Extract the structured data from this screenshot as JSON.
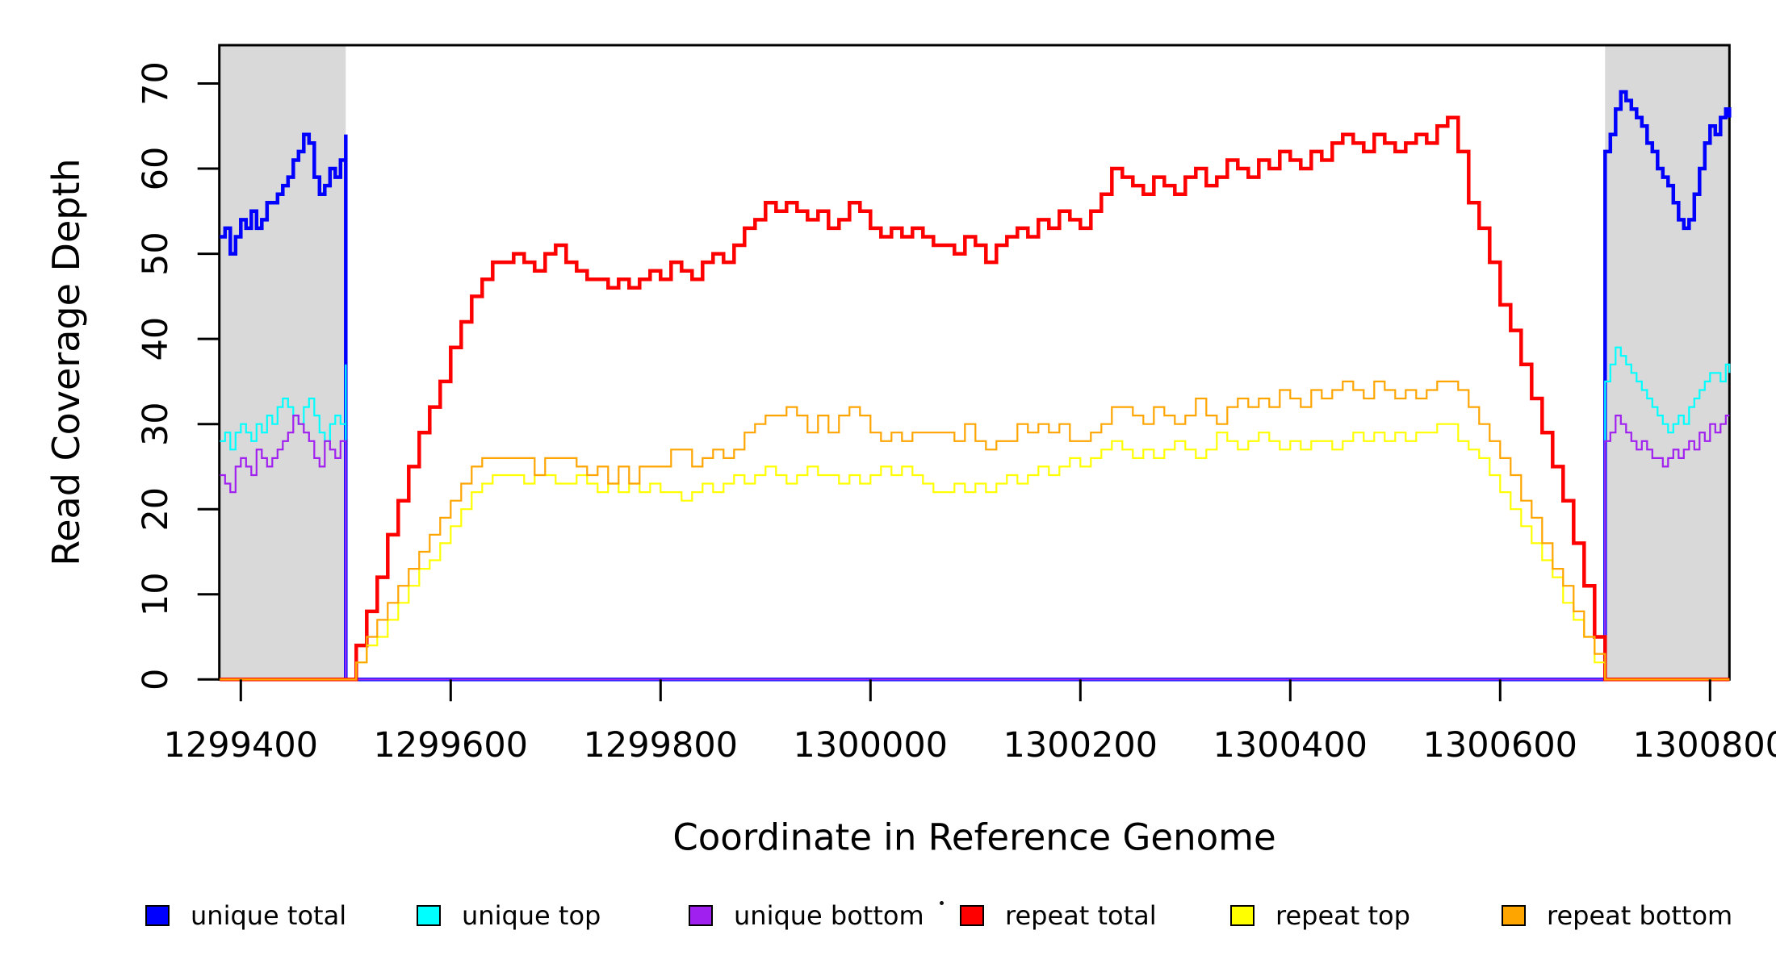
{
  "chart_data": {
    "type": "line",
    "title": "",
    "xlabel": "Coordinate in Reference Genome",
    "ylabel": "Read Coverage Depth",
    "x_domain": [
      1299379.5,
      1300818.5
    ],
    "y_domain": [
      0,
      74.5
    ],
    "grid": false,
    "legend_position": "bottom",
    "axis_color": "#000000",
    "shade_color": "#D9D9D9",
    "x_ticks": [
      {
        "v": 1299400,
        "label": "1299400"
      },
      {
        "v": 1299600,
        "label": "1299600"
      },
      {
        "v": 1299800,
        "label": "1299800"
      },
      {
        "v": 1300000,
        "label": "1300000"
      },
      {
        "v": 1300200,
        "label": "1300200"
      },
      {
        "v": 1300400,
        "label": "1300400"
      },
      {
        "v": 1300600,
        "label": "1300600"
      },
      {
        "v": 1300800,
        "label": "1300800"
      }
    ],
    "y_ticks": [
      {
        "v": 0,
        "label": "0"
      },
      {
        "v": 10,
        "label": "10"
      },
      {
        "v": 20,
        "label": "20"
      },
      {
        "v": 30,
        "label": "30"
      },
      {
        "v": 40,
        "label": "40"
      },
      {
        "v": 50,
        "label": "50"
      },
      {
        "v": 60,
        "label": "60"
      },
      {
        "v": 70,
        "label": "70"
      }
    ],
    "shaded_regions": [
      {
        "from": 1299379.5,
        "to": 1299500
      },
      {
        "from": 1300700,
        "to": 1300818.5
      }
    ],
    "series": [
      {
        "name": "unique total",
        "color": "#0000FF",
        "width": 4.5,
        "segments": [
          {
            "x0": 1299380,
            "dx": 5,
            "v": [
              52,
              53,
              50,
              52,
              54,
              53,
              55,
              53,
              54,
              56,
              56,
              57,
              58,
              59,
              61,
              62,
              64,
              63,
              59,
              57,
              58,
              60,
              59,
              61,
              64
            ]
          },
          {
            "x0": 1299500,
            "dx": 1200,
            "v": [
              0
            ]
          },
          {
            "x0": 1300700,
            "dx": 5,
            "v": [
              62,
              64,
              67,
              69,
              68,
              67,
              66,
              65,
              63,
              62,
              60,
              59,
              58,
              56,
              54,
              53,
              54,
              57,
              60,
              63,
              65,
              64,
              66,
              67,
              66
            ]
          }
        ]
      },
      {
        "name": "unique top",
        "color": "#00FFFF",
        "width": 2.2,
        "segments": [
          {
            "x0": 1299380,
            "dx": 5,
            "v": [
              28,
              29,
              27,
              29,
              30,
              29,
              28,
              30,
              29,
              31,
              30,
              32,
              33,
              32,
              31,
              30,
              32,
              33,
              31,
              29,
              28,
              30,
              31,
              30,
              37
            ]
          },
          {
            "x0": 1299500,
            "dx": 1200,
            "v": [
              0
            ]
          },
          {
            "x0": 1300700,
            "dx": 5,
            "v": [
              35,
              37,
              39,
              38,
              37,
              36,
              35,
              34,
              33,
              32,
              31,
              30,
              29,
              30,
              31,
              30,
              32,
              33,
              34,
              35,
              36,
              36,
              35,
              37,
              36
            ]
          }
        ]
      },
      {
        "name": "unique bottom",
        "color": "#A020F0",
        "width": 2.2,
        "segments": [
          {
            "x0": 1299380,
            "dx": 5,
            "v": [
              24,
              23,
              22,
              25,
              26,
              25,
              24,
              27,
              26,
              25,
              26,
              27,
              28,
              29,
              31,
              30,
              29,
              28,
              26,
              25,
              28,
              27,
              26,
              28,
              27
            ]
          },
          {
            "x0": 1299500,
            "dx": 1200,
            "v": [
              0
            ]
          },
          {
            "x0": 1300700,
            "dx": 5,
            "v": [
              28,
              29,
              31,
              30,
              29,
              28,
              27,
              28,
              27,
              26,
              26,
              25,
              26,
              27,
              26,
              27,
              28,
              27,
              29,
              28,
              30,
              29,
              30,
              31,
              31
            ]
          }
        ]
      },
      {
        "name": "repeat total",
        "color": "#FF0000",
        "width": 4.5,
        "segments": [
          {
            "x0": 1299380,
            "dx": 120,
            "v": [
              0
            ]
          },
          {
            "x0": 1299500,
            "dx": 10,
            "v": [
              0,
              4,
              8,
              12,
              17,
              21,
              25,
              29,
              32,
              35,
              39,
              42,
              45,
              47,
              49,
              49,
              50,
              49,
              48,
              50,
              51,
              49,
              48,
              47,
              47,
              46,
              47,
              46,
              47,
              48,
              47,
              49,
              48,
              47,
              49,
              50,
              49,
              51,
              53,
              54,
              56,
              55,
              56,
              55,
              54,
              55,
              53,
              54,
              56,
              55,
              53,
              52,
              53,
              52,
              53,
              52,
              51,
              51,
              50,
              52,
              51,
              49,
              51,
              52,
              53,
              52,
              54,
              53,
              55,
              54,
              53,
              55,
              57,
              60,
              59,
              58,
              57,
              59,
              58,
              57,
              59,
              60,
              58,
              59,
              61,
              60,
              59,
              61,
              60,
              62,
              61,
              60,
              62,
              61,
              63,
              64,
              63,
              62,
              64,
              63,
              62,
              63,
              64,
              63,
              65,
              66,
              62,
              56,
              53,
              49,
              44,
              41,
              37,
              33,
              29,
              25,
              21,
              16,
              11,
              5,
              0
            ]
          }
        ]
      },
      {
        "name": "repeat top",
        "color": "#FFFF00",
        "width": 2.2,
        "segments": [
          {
            "x0": 1299380,
            "dx": 120,
            "v": [
              0
            ]
          },
          {
            "x0": 1299500,
            "dx": 10,
            "v": [
              0,
              2,
              4,
              5,
              7,
              9,
              11,
              13,
              14,
              16,
              18,
              20,
              22,
              23,
              24,
              24,
              24,
              23,
              24,
              24,
              23,
              23,
              24,
              23,
              22,
              23,
              22,
              23,
              22,
              23,
              22,
              22,
              21,
              22,
              23,
              22,
              23,
              24,
              23,
              24,
              25,
              24,
              23,
              24,
              25,
              24,
              24,
              23,
              24,
              23,
              24,
              25,
              24,
              25,
              24,
              23,
              22,
              22,
              23,
              22,
              23,
              22,
              23,
              24,
              23,
              24,
              25,
              24,
              25,
              26,
              25,
              26,
              27,
              28,
              27,
              26,
              27,
              26,
              27,
              28,
              27,
              26,
              27,
              29,
              28,
              27,
              28,
              29,
              28,
              27,
              28,
              27,
              28,
              28,
              27,
              28,
              29,
              28,
              29,
              28,
              29,
              28,
              29,
              29,
              30,
              30,
              28,
              27,
              26,
              24,
              22,
              20,
              18,
              16,
              14,
              12,
              9,
              7,
              5,
              2,
              0
            ]
          }
        ]
      },
      {
        "name": "repeat bottom",
        "color": "#FFA500",
        "width": 2.2,
        "segments": [
          {
            "x0": 1299380,
            "dx": 120,
            "v": [
              0
            ]
          },
          {
            "x0": 1299500,
            "dx": 10,
            "v": [
              0,
              2,
              5,
              7,
              9,
              11,
              13,
              15,
              17,
              19,
              21,
              23,
              25,
              26,
              26,
              26,
              26,
              26,
              24,
              26,
              26,
              26,
              25,
              24,
              25,
              23,
              25,
              23,
              25,
              25,
              25,
              27,
              27,
              25,
              26,
              27,
              26,
              27,
              29,
              30,
              31,
              31,
              32,
              31,
              29,
              31,
              29,
              31,
              32,
              31,
              29,
              28,
              29,
              28,
              29,
              29,
              29,
              29,
              28,
              30,
              28,
              27,
              28,
              28,
              30,
              29,
              30,
              29,
              30,
              28,
              28,
              29,
              30,
              32,
              32,
              31,
              30,
              32,
              31,
              30,
              31,
              33,
              31,
              30,
              32,
              33,
              32,
              33,
              32,
              34,
              33,
              32,
              34,
              33,
              34,
              35,
              34,
              33,
              35,
              34,
              33,
              34,
              33,
              34,
              35,
              35,
              34,
              32,
              30,
              28,
              26,
              24,
              21,
              19,
              16,
              13,
              11,
              8,
              5,
              3,
              0
            ]
          }
        ]
      }
    ]
  }
}
